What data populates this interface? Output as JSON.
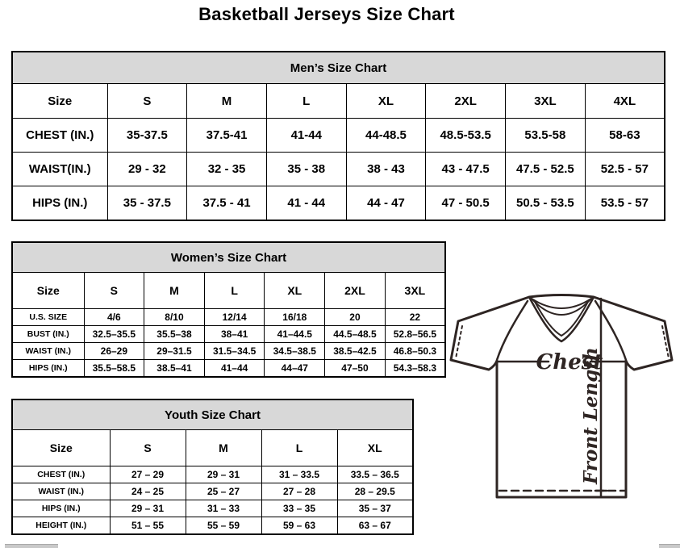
{
  "page": {
    "title": "Basketball Jerseys Size Chart"
  },
  "colors": {
    "table_header_bg": "#d8d8d8",
    "border": "#000000",
    "background": "#ffffff",
    "diagram_stroke": "#2e2523"
  },
  "tables": {
    "men": {
      "title": "Men’s Size Chart",
      "columns": [
        "Size",
        "S",
        "M",
        "L",
        "XL",
        "2XL",
        "3XL",
        "4XL"
      ],
      "rows": [
        {
          "label": "CHEST (IN.)",
          "values": [
            "35-37.5",
            "37.5-41",
            "41-44",
            "44-48.5",
            "48.5-53.5",
            "53.5-58",
            "58-63"
          ]
        },
        {
          "label": "WAIST(IN.)",
          "values": [
            "29 - 32",
            "32 - 35",
            "35 - 38",
            "38 - 43",
            "43 - 47.5",
            "47.5 - 52.5",
            "52.5 - 57"
          ]
        },
        {
          "label": "HIPS (IN.)",
          "values": [
            "35 - 37.5",
            "37.5 - 41",
            "41 - 44",
            "44 - 47",
            "47 - 50.5",
            "50.5 - 53.5",
            "53.5 - 57"
          ]
        }
      ]
    },
    "women": {
      "title": "Women’s Size Chart",
      "columns": [
        "Size",
        "S",
        "M",
        "L",
        "XL",
        "2XL",
        "3XL"
      ],
      "rows": [
        {
          "label": "U.S. SIZE",
          "values": [
            "4/6",
            "8/10",
            "12/14",
            "16/18",
            "20",
            "22"
          ]
        },
        {
          "label": "BUST (IN.)",
          "values": [
            "32.5–35.5",
            "35.5–38",
            "38–41",
            "41–44.5",
            "44.5–48.5",
            "52.8–56.5"
          ]
        },
        {
          "label": "WAIST (IN.)",
          "values": [
            "26–29",
            "29–31.5",
            "31.5–34.5",
            "34.5–38.5",
            "38.5–42.5",
            "46.8–50.3"
          ]
        },
        {
          "label": "HIPS (IN.)",
          "values": [
            "35.5–58.5",
            "38.5–41",
            "41–44",
            "44–47",
            "47–50",
            "54.3–58.3"
          ]
        }
      ]
    },
    "youth": {
      "title": "Youth Size Chart",
      "columns": [
        "Size",
        "S",
        "M",
        "L",
        "XL"
      ],
      "rows": [
        {
          "label": "CHEST (IN.)",
          "values": [
            "27 – 29",
            "29 – 31",
            "31 – 33.5",
            "33.5 – 36.5"
          ]
        },
        {
          "label": "WAIST (IN.)",
          "values": [
            "24 – 25",
            "25 – 27",
            "27 – 28",
            "28 – 29.5"
          ]
        },
        {
          "label": "HIPS (IN.)",
          "values": [
            "29 – 31",
            "31 – 33",
            "33 – 35",
            "35 – 37"
          ]
        },
        {
          "label": "HEIGHT (IN.)",
          "values": [
            "51 – 55",
            "55 – 59",
            "59 – 63",
            "63 – 67"
          ]
        }
      ]
    }
  },
  "diagram": {
    "chest_label": "Chest",
    "front_length_label": "Front Length"
  }
}
